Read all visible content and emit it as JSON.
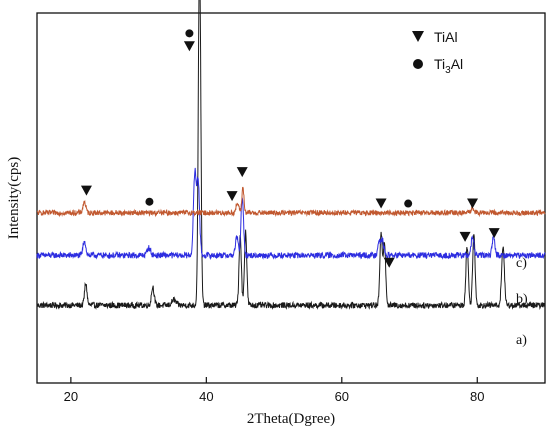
{
  "chart_data": {
    "type": "line",
    "xlabel": "2Theta(Dgree)",
    "ylabel": "Intensity(cps)",
    "xlim": [
      15,
      90
    ],
    "ylim": [
      0,
      100
    ],
    "x_ticks": [
      20,
      40,
      60,
      80
    ],
    "y_ticks_shown": false,
    "grid": false,
    "legend": {
      "placement": "top-right",
      "entries": [
        {
          "name": "TiAl",
          "marker": "triangle-down"
        },
        {
          "name": "Ti3Al",
          "name_main": "Ti",
          "name_sub": "3",
          "name_tail": "Al",
          "marker": "circle"
        }
      ]
    },
    "series": [
      {
        "name": "a)",
        "color": "#1a1a1a",
        "baseline": 21,
        "noise": 0.8,
        "peaks": [
          [
            22.2,
            6,
            0.18
          ],
          [
            32.1,
            5,
            0.2
          ],
          [
            35.2,
            1.5,
            0.3
          ],
          [
            39.0,
            96,
            0.18
          ],
          [
            45.0,
            19,
            0.17
          ],
          [
            45.8,
            20,
            0.17
          ],
          [
            65.8,
            19,
            0.18
          ],
          [
            66.3,
            17,
            0.18
          ],
          [
            78.5,
            16,
            0.18
          ],
          [
            79.5,
            19,
            0.18
          ],
          [
            83.8,
            16,
            0.2
          ]
        ]
      },
      {
        "name": "b)",
        "color": "#2d2de0",
        "baseline": 34.5,
        "noise": 0.8,
        "peaks": [
          [
            22.0,
            4,
            0.2
          ],
          [
            31.5,
            2,
            0.25
          ],
          [
            38.3,
            22,
            0.2
          ],
          [
            38.8,
            20,
            0.2
          ],
          [
            44.5,
            5,
            0.2
          ],
          [
            45.3,
            16,
            0.18
          ],
          [
            65.5,
            4,
            0.2
          ],
          [
            66.0,
            4,
            0.2
          ],
          [
            79.3,
            5,
            0.2
          ],
          [
            82.4,
            5,
            0.2
          ]
        ]
      },
      {
        "name": "c)",
        "color": "#c1582f",
        "baseline": 46,
        "noise": 0.7,
        "peaks": [
          [
            22.0,
            3,
            0.2
          ],
          [
            44.6,
            2.5,
            0.2
          ],
          [
            45.4,
            7,
            0.15
          ],
          [
            79.3,
            1.5,
            0.2
          ]
        ]
      }
    ],
    "markers": [
      {
        "type": "circle",
        "x": 37.5,
        "y": 94.5
      },
      {
        "type": "triangle-down",
        "x": 37.5,
        "y": 91
      },
      {
        "type": "triangle-down",
        "x": 22.3,
        "y": 52
      },
      {
        "type": "circle",
        "x": 31.6,
        "y": 49
      },
      {
        "type": "triangle-down",
        "x": 43.8,
        "y": 50.5
      },
      {
        "type": "triangle-down",
        "x": 45.3,
        "y": 57
      },
      {
        "type": "triangle-down",
        "x": 65.8,
        "y": 48.5
      },
      {
        "type": "circle",
        "x": 69.8,
        "y": 48.5
      },
      {
        "type": "triangle-down",
        "x": 79.3,
        "y": 48.5
      },
      {
        "type": "triangle-down",
        "x": 67.0,
        "y": 32.5
      },
      {
        "type": "triangle-down",
        "x": 78.2,
        "y": 39.5
      },
      {
        "type": "triangle-down",
        "x": 82.5,
        "y": 40.5
      }
    ]
  }
}
